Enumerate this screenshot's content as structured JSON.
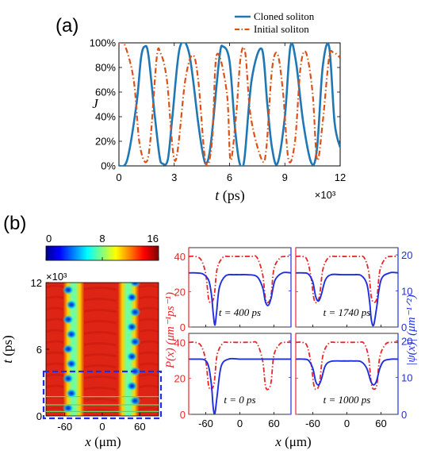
{
  "figure": {
    "panel_a_label": "(a)",
    "panel_b_label": "(b)"
  },
  "colors": {
    "cloned": "#1f77b4",
    "initial": "#d95319",
    "power": "#e8262a",
    "psi": "#1f2ee0",
    "guide_box": "#1f2ee0",
    "guide_lines": "#6cd36c"
  },
  "chart_data": [
    {
      "id": "a",
      "type": "line",
      "xlabel_italic": "t",
      "xlabel_unit": " (ps)",
      "ylabel": "J",
      "x_exponent_label": "×10³",
      "xlim": [
        0,
        12
      ],
      "ylim": [
        0,
        100
      ],
      "xticks": [
        0,
        3,
        6,
        9,
        12
      ],
      "yticks": [
        0,
        20,
        40,
        60,
        80,
        100
      ],
      "ytick_labels": [
        "0%",
        "20%",
        "40%",
        "60%",
        "80%",
        "100%"
      ],
      "legend_position": "top-right-outside",
      "series": [
        {
          "name": "Cloned soliton",
          "style": "solid",
          "x": [
            0,
            0.45,
            0.95,
            1.2,
            1.4,
            1.6,
            1.95,
            2.2,
            2.35,
            2.65,
            2.9,
            3.3,
            3.8,
            4.3,
            4.55,
            4.75,
            5.0,
            5.45,
            5.65,
            6.0,
            6.3,
            6.55,
            6.8,
            7.2,
            7.75,
            8.05,
            8.3,
            8.6,
            9.0,
            9.3,
            9.6,
            10.0,
            10.45,
            10.75,
            11.05,
            11.4,
            11.7,
            12.0
          ],
          "y": [
            0,
            5,
            50,
            88,
            97,
            90,
            40,
            8,
            2,
            5,
            40,
            96,
            92,
            35,
            10,
            2,
            20,
            88,
            97,
            85,
            30,
            2,
            5,
            70,
            95,
            50,
            15,
            2,
            40,
            97,
            85,
            35,
            2,
            15,
            80,
            97,
            35,
            15
          ]
        },
        {
          "name": "Initial soliton",
          "style": "dash-dot",
          "x": [
            0,
            0.3,
            0.8,
            1.1,
            1.45,
            1.7,
            2.05,
            2.25,
            2.6,
            3.05,
            3.6,
            4.0,
            4.3,
            4.7,
            5.05,
            5.3,
            5.85,
            6.05,
            6.35,
            6.6,
            6.85,
            7.15,
            7.75,
            8.0,
            8.3,
            8.6,
            8.9,
            9.2,
            9.55,
            9.85,
            10.15,
            10.5,
            10.75,
            11.05,
            11.4,
            11.65,
            12.0
          ],
          "y": [
            100,
            99,
            70,
            20,
            3,
            20,
            88,
            92,
            70,
            4,
            70,
            90,
            70,
            3,
            20,
            90,
            60,
            5,
            40,
            88,
            92,
            40,
            5,
            15,
            78,
            91,
            60,
            5,
            20,
            80,
            92,
            60,
            5,
            35,
            88,
            92,
            88
          ]
        }
      ]
    },
    {
      "id": "b-map",
      "type": "heatmap",
      "xlabel_italic": "x",
      "xlabel_unit": " (μm)",
      "ylabel_italic": "t",
      "ylabel_unit": " (ps)",
      "y_exponent_label": "×10³",
      "xlim": [
        -90,
        90
      ],
      "ylim": [
        0,
        12
      ],
      "xticks": [
        -60,
        0,
        60
      ],
      "yticks": [
        0,
        6,
        12
      ],
      "colorbar_ticks": [
        0,
        8,
        16
      ],
      "colorbar_range": [
        0,
        16
      ],
      "colormap": "jet",
      "guide_box_t": [
        0,
        4
      ],
      "guide_lines_t": [
        0.4,
        1.0,
        1.74
      ]
    },
    {
      "id": "b-profiles",
      "type": "line",
      "left_ylabel_html": "P(x) (μm⁻¹ps⁻¹)",
      "right_ylabel_html": "|ψ(x)| (μm⁻¹ᐟ²)",
      "xlabel_italic": "x",
      "xlabel_unit": " (μm)",
      "xlim": [
        -90,
        90
      ],
      "xticks": [
        -60,
        0,
        60
      ],
      "left_ylim": [
        0,
        45
      ],
      "left_yticks": [
        0,
        20,
        40
      ],
      "right_ylim": [
        0,
        22
      ],
      "right_yticks": [
        0,
        10,
        20
      ],
      "panels": [
        {
          "label": "t = 400 ps",
          "psi": {
            "x": [
              -90,
              -78,
              -65,
              -55,
              -50,
              -47,
              -44,
              -41,
              -36,
              -25,
              -10,
              0,
              12,
              30,
              40,
              45,
              50,
              55,
              62,
              75,
              90
            ],
            "y": [
              15,
              15,
              14.7,
              13,
              9,
              4,
              0.5,
              4,
              11,
              14.2,
              14.5,
              14.5,
              14.5,
              14,
              11,
              7,
              6,
              8,
              13,
              15,
              15
            ]
          },
          "power": {
            "x": [
              -90,
              -78,
              -68,
              -60,
              -55,
              -50,
              -45,
              -40,
              -30,
              -20,
              0,
              20,
              30,
              40,
              45,
              50,
              55,
              60,
              70,
              78,
              90
            ],
            "y": [
              40,
              40,
              38,
              30,
              16,
              14,
              18,
              33,
              39.5,
              40,
              40,
              40,
              39.5,
              30,
              16,
              14,
              18,
              33,
              39,
              40,
              40
            ]
          }
        },
        {
          "label": "t = 1740 ps",
          "psi": {
            "x": [
              -90,
              -78,
              -68,
              -60,
              -55,
              -50,
              -45,
              -38,
              -28,
              -10,
              0,
              12,
              25,
              35,
              40,
              43,
              47,
              52,
              60,
              75,
              90
            ],
            "y": [
              15,
              15,
              14.7,
              12.5,
              8.5,
              7.2,
              9,
              13,
              14.5,
              14.5,
              14.5,
              14.5,
              14.3,
              12,
              7,
              2,
              0.5,
              5,
              13,
              15,
              15
            ]
          },
          "power": {
            "x": [
              -90,
              -78,
              -70,
              -63,
              -58,
              -53,
              -48,
              -42,
              -32,
              -20,
              0,
              20,
              30,
              38,
              43,
              48,
              53,
              58,
              68,
              78,
              90
            ],
            "y": [
              40,
              40,
              38,
              28,
              16,
              14,
              18,
              33,
              39.5,
              40,
              40,
              40,
              39.5,
              32,
              17,
              14,
              17,
              32,
              39,
              40,
              40
            ]
          }
        },
        {
          "label": "t = 0 ps",
          "psi": {
            "x": [
              -90,
              -75,
              -62,
              -55,
              -50,
              -47,
              -44,
              -40,
              -33,
              -20,
              0,
              20,
              40,
              60,
              75,
              90
            ],
            "y": [
              15,
              15,
              14.8,
              13,
              8,
              2,
              0.2,
              5,
              13,
              15,
              15,
              15,
              15,
              15,
              15,
              15
            ]
          },
          "power": {
            "x": [
              -90,
              -78,
              -68,
              -60,
              -55,
              -50,
              -45,
              -40,
              -30,
              -20,
              0,
              20,
              30,
              40,
              45,
              50,
              55,
              60,
              70,
              78,
              90
            ],
            "y": [
              40,
              40,
              38,
              30,
              16,
              14,
              18,
              33,
              39.5,
              40,
              40,
              40,
              39.5,
              30,
              16,
              14,
              18,
              33,
              39,
              40,
              40
            ]
          }
        },
        {
          "label": "t = 1000 ps",
          "psi": {
            "x": [
              -90,
              -78,
              -68,
              -60,
              -55,
              -50,
              -45,
              -38,
              -28,
              -10,
              0,
              12,
              25,
              35,
              42,
              47,
              52,
              58,
              65,
              78,
              90
            ],
            "y": [
              15,
              15,
              14.7,
              12.5,
              9,
              8,
              9.5,
              13.2,
              14.4,
              14.5,
              14.5,
              14.5,
              14.3,
              12.5,
              9,
              8,
              9,
              12.5,
              14.5,
              15,
              15
            ]
          },
          "power": {
            "x": [
              -90,
              -78,
              -70,
              -63,
              -58,
              -53,
              -48,
              -42,
              -32,
              -20,
              0,
              20,
              30,
              38,
              43,
              48,
              53,
              58,
              68,
              78,
              90
            ],
            "y": [
              40,
              40,
              38,
              28,
              16,
              14,
              18,
              33,
              39.5,
              40,
              40,
              40,
              39.5,
              32,
              17,
              14,
              17,
              32,
              39,
              40,
              40
            ]
          }
        }
      ]
    }
  ]
}
